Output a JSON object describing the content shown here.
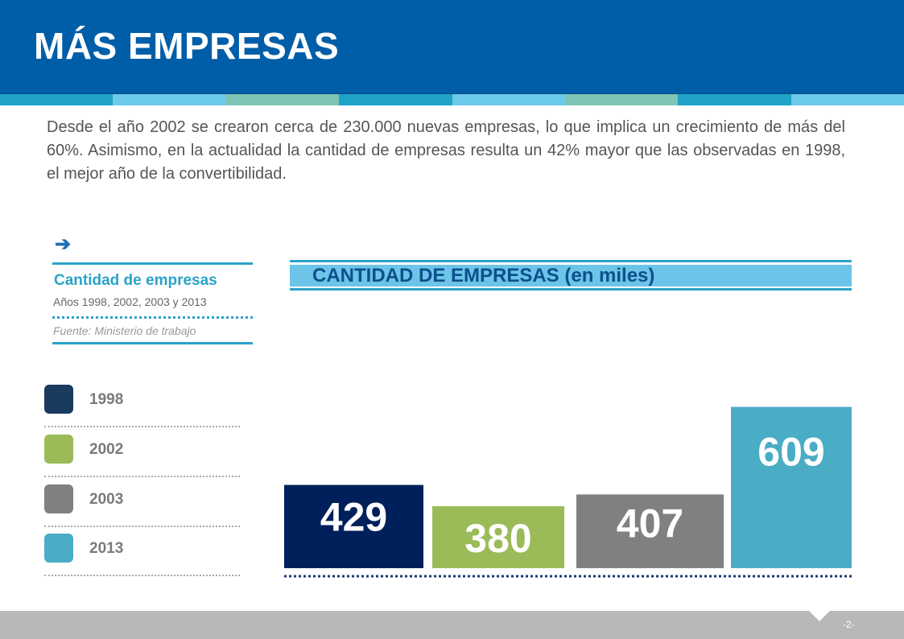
{
  "header": {
    "title": "MÁS EMPRESAS"
  },
  "stripe_colors": [
    "#1fa3c9",
    "#6ccaea",
    "#7dc5b4",
    "#1fa3c9",
    "#6ccaea",
    "#7dc5b4",
    "#1fa3c9",
    "#6ccaea"
  ],
  "intro_text": "Desde el año 2002 se crearon cerca de 230.000 nuevas empresas, lo que implica un crecimiento de más del 60%. Asimismo, en la actualidad la cantidad de empresas resulta un 42% mayor que las observadas en 1998, el mejor año de la convertibilidad.",
  "sidebar": {
    "arrow_icon": "arrow-right-icon",
    "title": "Cantidad de empresas",
    "subtitle": "Años 1998, 2002, 2003 y 2013",
    "source": "Fuente: Ministerio de trabajo"
  },
  "legend": [
    {
      "label": "1998",
      "color": "#1a3a5f"
    },
    {
      "label": "2002",
      "color": "#9bbb59"
    },
    {
      "label": "2003",
      "color": "#808080"
    },
    {
      "label": "2013",
      "color": "#4bacc6"
    }
  ],
  "chart_data": {
    "type": "bar",
    "title": "CANTIDAD DE EMPRESAS (en miles)",
    "categories": [
      "1998",
      "2002",
      "2003",
      "2013"
    ],
    "values": [
      429,
      380,
      407,
      609
    ],
    "colors": [
      "#00205b",
      "#9bbb59",
      "#808080",
      "#4bacc6"
    ],
    "data_labels": [
      "429",
      "380",
      "407",
      "609"
    ],
    "xlabel": "",
    "ylabel": "",
    "grid": false,
    "legend": "left"
  },
  "footer": {
    "page_number": "-2-"
  }
}
